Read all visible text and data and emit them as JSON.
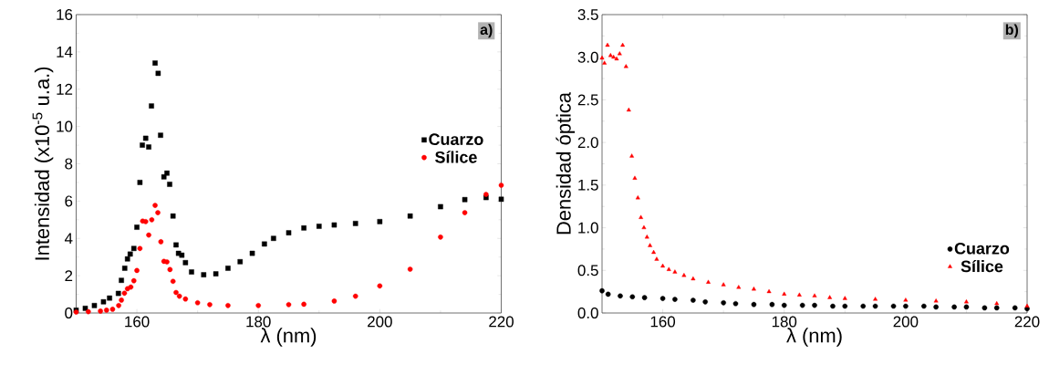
{
  "chart_data": [
    {
      "type": "scatter",
      "xlabel": "λ (nm)",
      "ylabel": "Intensidad (x10$^{-5}$ u.a.)",
      "annotations": [
        "a)"
      ],
      "xlim": [
        150,
        220
      ],
      "ylim": [
        0,
        16
      ],
      "xticks": [
        160,
        180,
        200,
        220
      ],
      "yticks": [
        0,
        2,
        4,
        6,
        8,
        10,
        12,
        14,
        16
      ],
      "legend": "right",
      "series": [
        {
          "name": "Cuarzo",
          "color": "#000000",
          "marker": "square",
          "x": [
            150,
            151.5,
            153,
            154.5,
            155.5,
            156.95,
            157.45,
            158,
            158.45,
            158.9,
            159.5,
            160,
            160.5,
            160.9,
            161.45,
            161.95,
            162.4,
            163,
            163.5,
            163.9,
            164.45,
            164.95,
            165.4,
            165.95,
            166.45,
            166.85,
            167.4,
            168,
            169,
            171,
            173,
            175,
            177,
            179,
            181,
            182.5,
            185,
            187.5,
            190,
            192.5,
            196,
            200,
            205,
            210,
            214,
            217.5,
            220
          ],
          "values": [
            0.15,
            0.25,
            0.4,
            0.6,
            0.8,
            1.05,
            1.75,
            2.4,
            2.9,
            3.16,
            3.46,
            4.6,
            7.0,
            9.0,
            9.37,
            8.9,
            11.1,
            13.4,
            12.85,
            9.53,
            7.3,
            7.5,
            6.9,
            5.2,
            3.65,
            3.2,
            3.1,
            2.7,
            2.2,
            2.05,
            2.1,
            2.4,
            2.75,
            3.2,
            3.7,
            4.0,
            4.3,
            4.56,
            4.65,
            4.72,
            4.8,
            4.9,
            5.2,
            5.7,
            6.08,
            6.19,
            6.1
          ]
        },
        {
          "name": "Sílice",
          "color": "#ff0000",
          "marker": "circle",
          "x": [
            150,
            152,
            154,
            155,
            156,
            157,
            157.45,
            157.95,
            158.45,
            159,
            159.5,
            160,
            160.5,
            160.95,
            161.45,
            161.95,
            162.45,
            163,
            163.45,
            163.95,
            164.45,
            164.95,
            165.45,
            165.95,
            166.45,
            167,
            168,
            170,
            172,
            175,
            180,
            185,
            187.5,
            192.5,
            196,
            200,
            205,
            210,
            214,
            217.5,
            220
          ],
          "values": [
            0.05,
            0.07,
            0.1,
            0.15,
            0.2,
            0.4,
            0.69,
            1.06,
            1.3,
            1.39,
            1.73,
            2.28,
            3.46,
            4.93,
            4.9,
            4.18,
            5.0,
            5.77,
            5.38,
            3.82,
            2.77,
            2.74,
            2.33,
            1.7,
            1.1,
            0.9,
            0.75,
            0.55,
            0.45,
            0.4,
            0.4,
            0.45,
            0.47,
            0.64,
            0.9,
            1.45,
            2.35,
            4.07,
            5.38,
            6.36,
            6.85
          ]
        }
      ]
    },
    {
      "type": "scatter",
      "xlabel": "λ (nm)",
      "ylabel": "Densidad óptica",
      "annotations": [
        "b)"
      ],
      "xlim": [
        150,
        220
      ],
      "ylim": [
        0,
        3.5
      ],
      "xticks": [
        160,
        180,
        200,
        220
      ],
      "yticks": [
        {
          "value": 0,
          "label": "0.0"
        },
        {
          "value": 0.5,
          "label": "0.5"
        },
        {
          "value": 1,
          "label": "1.0"
        },
        {
          "value": 1.5,
          "label": "1.5"
        },
        {
          "value": 2,
          "label": "2.0"
        },
        {
          "value": 2.5,
          "label": "2.5"
        },
        {
          "value": 3,
          "label": "3.0"
        },
        {
          "value": 3.5,
          "label": "3.5"
        }
      ],
      "legend": "bottom right",
      "series": [
        {
          "name": "Cuarzo",
          "color": "#000000",
          "marker": "circle",
          "x": [
            150,
            151,
            153,
            155,
            157,
            160,
            162,
            165,
            167,
            170,
            172,
            175,
            178,
            180,
            183,
            185,
            188,
            190,
            193,
            195,
            198,
            200,
            203,
            205,
            208,
            210,
            213,
            215,
            218,
            220
          ],
          "values": [
            0.26,
            0.22,
            0.2,
            0.19,
            0.18,
            0.17,
            0.16,
            0.15,
            0.13,
            0.12,
            0.11,
            0.1,
            0.1,
            0.09,
            0.09,
            0.09,
            0.08,
            0.08,
            0.08,
            0.08,
            0.08,
            0.08,
            0.08,
            0.07,
            0.07,
            0.07,
            0.06,
            0.06,
            0.06,
            0.05
          ]
        },
        {
          "name": "Sílice",
          "color": "#ff0000",
          "marker": "triangle",
          "x": [
            150,
            150.4,
            150.9,
            151.4,
            151.9,
            152.4,
            152.9,
            153.4,
            153.95,
            154.4,
            154.9,
            155.4,
            155.9,
            156.4,
            156.9,
            157.4,
            157.9,
            158.5,
            159,
            160,
            161,
            162,
            163.5,
            165,
            167.5,
            170,
            172.5,
            175,
            177.5,
            180,
            182.5,
            185,
            187.5,
            190,
            195,
            200,
            205,
            210,
            215,
            220
          ],
          "values": [
            2.99,
            2.93,
            3.14,
            3.02,
            3.0,
            2.98,
            3.04,
            3.14,
            2.89,
            2.38,
            1.84,
            1.58,
            1.35,
            1.12,
            1.0,
            0.89,
            0.79,
            0.71,
            0.63,
            0.55,
            0.51,
            0.48,
            0.44,
            0.4,
            0.36,
            0.33,
            0.3,
            0.28,
            0.25,
            0.22,
            0.21,
            0.2,
            0.18,
            0.17,
            0.16,
            0.15,
            0.14,
            0.13,
            0.11,
            0.08
          ]
        }
      ]
    }
  ]
}
